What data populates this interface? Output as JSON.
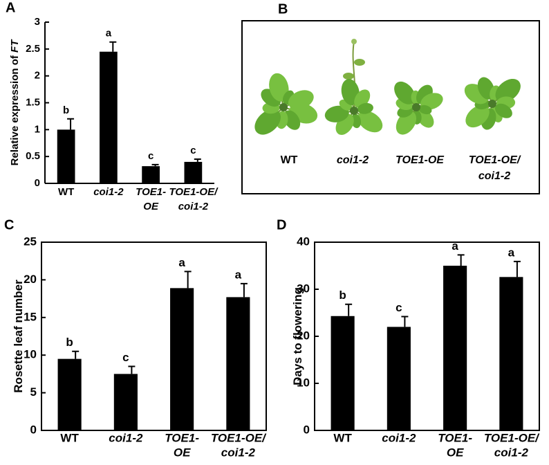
{
  "chart_data": [
    {
      "type": "bar",
      "panel_label": "A",
      "y_label": [
        "Relative expression of ",
        "FT"
      ],
      "categories": [
        [
          "WT"
        ],
        [
          "coi1-2"
        ],
        [
          "TOE1-",
          "OE"
        ],
        [
          "TOE1-OE/",
          "coi1-2"
        ]
      ],
      "values": [
        1.0,
        2.45,
        0.32,
        0.4
      ],
      "errors": [
        0.2,
        0.18,
        0.03,
        0.05
      ],
      "annotations": [
        "b",
        "a",
        "c",
        "c"
      ],
      "color": "#000000",
      "ylim": [
        0,
        3
      ],
      "yticks": [
        0,
        0.5,
        1,
        1.5,
        2,
        2.5,
        3
      ],
      "box": false
    },
    {
      "type": "bar",
      "panel_label": "C",
      "y_label": [
        "Rosette leaf number"
      ],
      "categories": [
        [
          "WT"
        ],
        [
          "coi1-2"
        ],
        [
          "TOE1-",
          "OE"
        ],
        [
          "TOE1-OE/",
          "coi1-2"
        ]
      ],
      "values": [
        9.5,
        7.5,
        18.9,
        17.7
      ],
      "errors": [
        1.0,
        1.0,
        2.2,
        1.8
      ],
      "annotations": [
        "b",
        "c",
        "a",
        "a"
      ],
      "color": "#000000",
      "ylim": [
        0,
        25
      ],
      "yticks": [
        0,
        5,
        10,
        15,
        20,
        25
      ],
      "box": true
    },
    {
      "type": "bar",
      "panel_label": "D",
      "y_label": [
        "Days to flowering"
      ],
      "categories": [
        [
          "WT"
        ],
        [
          "coi1-2"
        ],
        [
          "TOE1-",
          "OE"
        ],
        [
          "TOE1-OE/",
          "coi1-2"
        ]
      ],
      "values": [
        24.3,
        22.0,
        35.0,
        32.6
      ],
      "errors": [
        2.5,
        2.2,
        2.3,
        3.3
      ],
      "annotations": [
        "b",
        "c",
        "a",
        "a"
      ],
      "color": "#000000",
      "ylim": [
        0,
        40
      ],
      "yticks": [
        0,
        10,
        20,
        30,
        40
      ],
      "box": true
    }
  ],
  "photo_panel": {
    "label": "B",
    "captions": [
      [
        "WT"
      ],
      [
        "coi1-2"
      ],
      [
        "TOE1-OE"
      ],
      [
        "TOE1-OE/",
        "coi1-2"
      ]
    ]
  }
}
